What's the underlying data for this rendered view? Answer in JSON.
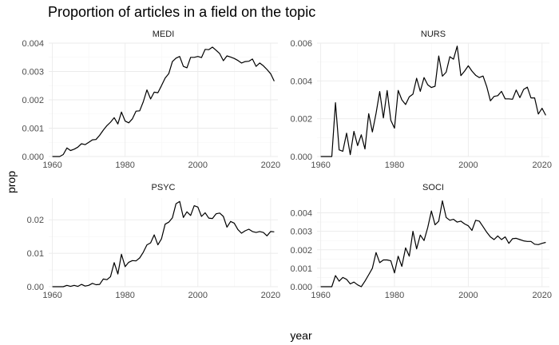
{
  "chart_data": {
    "type": "line",
    "title": "Proportion of articles in a field on the topic",
    "xlabel": "year",
    "ylabel": "prop",
    "grid": true,
    "x_ticks": [
      1960,
      1980,
      2000,
      2020
    ],
    "x_range": [
      1959,
      2022
    ],
    "panels": [
      {
        "name": "MEDI",
        "ylim": [
          0,
          0.004
        ],
        "y_ticks": [
          0,
          0.001,
          0.002,
          0.003,
          0.004
        ],
        "y_tick_labels": [
          "0.000",
          "0.001",
          "0.002",
          "0.003",
          "0.004"
        ],
        "x": [
          1960,
          1961,
          1962,
          1963,
          1964,
          1965,
          1966,
          1967,
          1968,
          1969,
          1970,
          1971,
          1972,
          1973,
          1974,
          1975,
          1976,
          1977,
          1978,
          1979,
          1980,
          1981,
          1982,
          1983,
          1984,
          1985,
          1986,
          1987,
          1988,
          1989,
          1990,
          1991,
          1992,
          1993,
          1994,
          1995,
          1996,
          1997,
          1998,
          1999,
          2000,
          2001,
          2002,
          2003,
          2004,
          2005,
          2006,
          2007,
          2008,
          2009,
          2010,
          2011,
          2012,
          2013,
          2014,
          2015,
          2016,
          2017,
          2018,
          2019,
          2020,
          2021
        ],
        "values": [
          0.0,
          0.0,
          0.0,
          7e-05,
          0.0003,
          0.00021,
          0.00026,
          0.00033,
          0.00045,
          0.00042,
          0.0005,
          0.00059,
          0.0006,
          0.00075,
          0.00093,
          0.00109,
          0.00121,
          0.00137,
          0.00115,
          0.00157,
          0.00125,
          0.00119,
          0.00133,
          0.0016,
          0.00161,
          0.00193,
          0.00235,
          0.00203,
          0.00227,
          0.00225,
          0.0025,
          0.00277,
          0.00292,
          0.00335,
          0.00347,
          0.00353,
          0.00318,
          0.00313,
          0.0035,
          0.0035,
          0.00353,
          0.00349,
          0.00378,
          0.00377,
          0.00386,
          0.00375,
          0.00363,
          0.00338,
          0.00355,
          0.00351,
          0.00346,
          0.00339,
          0.0033,
          0.00335,
          0.00336,
          0.00344,
          0.00318,
          0.0033,
          0.0032,
          0.00307,
          0.00292,
          0.00266
        ]
      },
      {
        "name": "NURS",
        "ylim": [
          0,
          0.006
        ],
        "y_ticks": [
          0,
          0.002,
          0.004,
          0.006
        ],
        "y_tick_labels": [
          "0.000",
          "0.002",
          "0.004",
          "0.006"
        ],
        "x": [
          1960,
          1961,
          1962,
          1963,
          1964,
          1965,
          1966,
          1967,
          1968,
          1969,
          1970,
          1971,
          1972,
          1973,
          1974,
          1975,
          1976,
          1977,
          1978,
          1979,
          1980,
          1981,
          1982,
          1983,
          1984,
          1985,
          1986,
          1987,
          1988,
          1989,
          1990,
          1991,
          1992,
          1993,
          1994,
          1995,
          1996,
          1997,
          1998,
          1999,
          2000,
          2001,
          2002,
          2003,
          2004,
          2005,
          2006,
          2007,
          2008,
          2009,
          2010,
          2011,
          2012,
          2013,
          2014,
          2015,
          2016,
          2017,
          2018,
          2019,
          2020,
          2021
        ],
        "values": [
          0.0,
          0.0,
          0.0,
          0.0,
          0.00285,
          0.00035,
          0.00028,
          0.00124,
          0.0001,
          0.00133,
          0.00058,
          0.00115,
          0.0004,
          0.00227,
          0.0013,
          0.00228,
          0.00344,
          0.00204,
          0.00349,
          0.00192,
          0.0015,
          0.0035,
          0.003,
          0.00275,
          0.00316,
          0.0033,
          0.00414,
          0.00345,
          0.00418,
          0.0038,
          0.00365,
          0.00372,
          0.00532,
          0.00425,
          0.00446,
          0.00528,
          0.00515,
          0.00584,
          0.00428,
          0.00452,
          0.0048,
          0.00452,
          0.0043,
          0.00418,
          0.00426,
          0.0037,
          0.00295,
          0.00318,
          0.00322,
          0.00345,
          0.00305,
          0.00305,
          0.00303,
          0.00352,
          0.00312,
          0.00355,
          0.00367,
          0.0031,
          0.0031,
          0.00225,
          0.00255,
          0.00218
        ]
      },
      {
        "name": "PSYC",
        "ylim": [
          0,
          0.0265
        ],
        "y_ticks": [
          0,
          0.01,
          0.02
        ],
        "y_tick_labels": [
          "0.00",
          "0.01",
          "0.02"
        ],
        "x": [
          1960,
          1961,
          1962,
          1963,
          1964,
          1965,
          1966,
          1967,
          1968,
          1969,
          1970,
          1971,
          1972,
          1973,
          1974,
          1975,
          1976,
          1977,
          1978,
          1979,
          1980,
          1981,
          1982,
          1983,
          1984,
          1985,
          1986,
          1987,
          1988,
          1989,
          1990,
          1991,
          1992,
          1993,
          1994,
          1995,
          1996,
          1997,
          1998,
          1999,
          2000,
          2001,
          2002,
          2003,
          2004,
          2005,
          2006,
          2007,
          2008,
          2009,
          2010,
          2011,
          2012,
          2013,
          2014,
          2015,
          2016,
          2017,
          2018,
          2019,
          2020,
          2021
        ],
        "values": [
          0.0,
          0.0,
          0.0,
          0.0,
          0.0004,
          0.0001,
          0.0004,
          0.0001,
          0.0007,
          0.0002,
          0.0004,
          0.001,
          0.0006,
          0.0007,
          0.0023,
          0.0021,
          0.003,
          0.0072,
          0.0038,
          0.0097,
          0.006,
          0.0073,
          0.0078,
          0.0077,
          0.0086,
          0.0103,
          0.0125,
          0.0131,
          0.0155,
          0.0125,
          0.0143,
          0.0187,
          0.0193,
          0.0206,
          0.0248,
          0.0255,
          0.0207,
          0.0224,
          0.0213,
          0.0242,
          0.0238,
          0.021,
          0.0221,
          0.0205,
          0.0204,
          0.0218,
          0.022,
          0.021,
          0.0178,
          0.0195,
          0.019,
          0.0171,
          0.016,
          0.0167,
          0.0172,
          0.0165,
          0.0162,
          0.0165,
          0.0162,
          0.0152,
          0.0165,
          0.0164
        ]
      },
      {
        "name": "SOCI",
        "ylim": [
          0,
          0.0048
        ],
        "y_ticks": [
          0,
          0.001,
          0.002,
          0.003,
          0.004
        ],
        "y_tick_labels": [
          "0.000",
          "0.001",
          "0.002",
          "0.003",
          "0.004"
        ],
        "x": [
          1960,
          1961,
          1962,
          1963,
          1964,
          1965,
          1966,
          1967,
          1968,
          1969,
          1970,
          1971,
          1972,
          1973,
          1974,
          1975,
          1976,
          1977,
          1978,
          1979,
          1980,
          1981,
          1982,
          1983,
          1984,
          1985,
          1986,
          1987,
          1988,
          1989,
          1990,
          1991,
          1992,
          1993,
          1994,
          1995,
          1996,
          1997,
          1998,
          1999,
          2000,
          2001,
          2002,
          2003,
          2004,
          2005,
          2006,
          2007,
          2008,
          2009,
          2010,
          2011,
          2012,
          2013,
          2014,
          2015,
          2016,
          2017,
          2018,
          2019,
          2020,
          2021
        ],
        "values": [
          0.0,
          0.0,
          0.0,
          0.0,
          0.0006,
          0.0003,
          0.0005,
          0.0004,
          0.00015,
          0.00025,
          0.0001,
          0.0,
          0.0003,
          0.00065,
          0.001,
          0.00185,
          0.0013,
          0.00145,
          0.00145,
          0.0014,
          0.00075,
          0.00165,
          0.0011,
          0.0021,
          0.00165,
          0.003,
          0.00205,
          0.0028,
          0.0025,
          0.0032,
          0.0041,
          0.00335,
          0.00355,
          0.00465,
          0.00375,
          0.0036,
          0.00365,
          0.0035,
          0.00355,
          0.0034,
          0.0033,
          0.00305,
          0.0036,
          0.00355,
          0.00325,
          0.00295,
          0.0027,
          0.00255,
          0.00275,
          0.00255,
          0.0027,
          0.00235,
          0.0026,
          0.00262,
          0.00255,
          0.00248,
          0.00245,
          0.00245,
          0.0023,
          0.00228,
          0.00235,
          0.0024
        ]
      }
    ]
  }
}
